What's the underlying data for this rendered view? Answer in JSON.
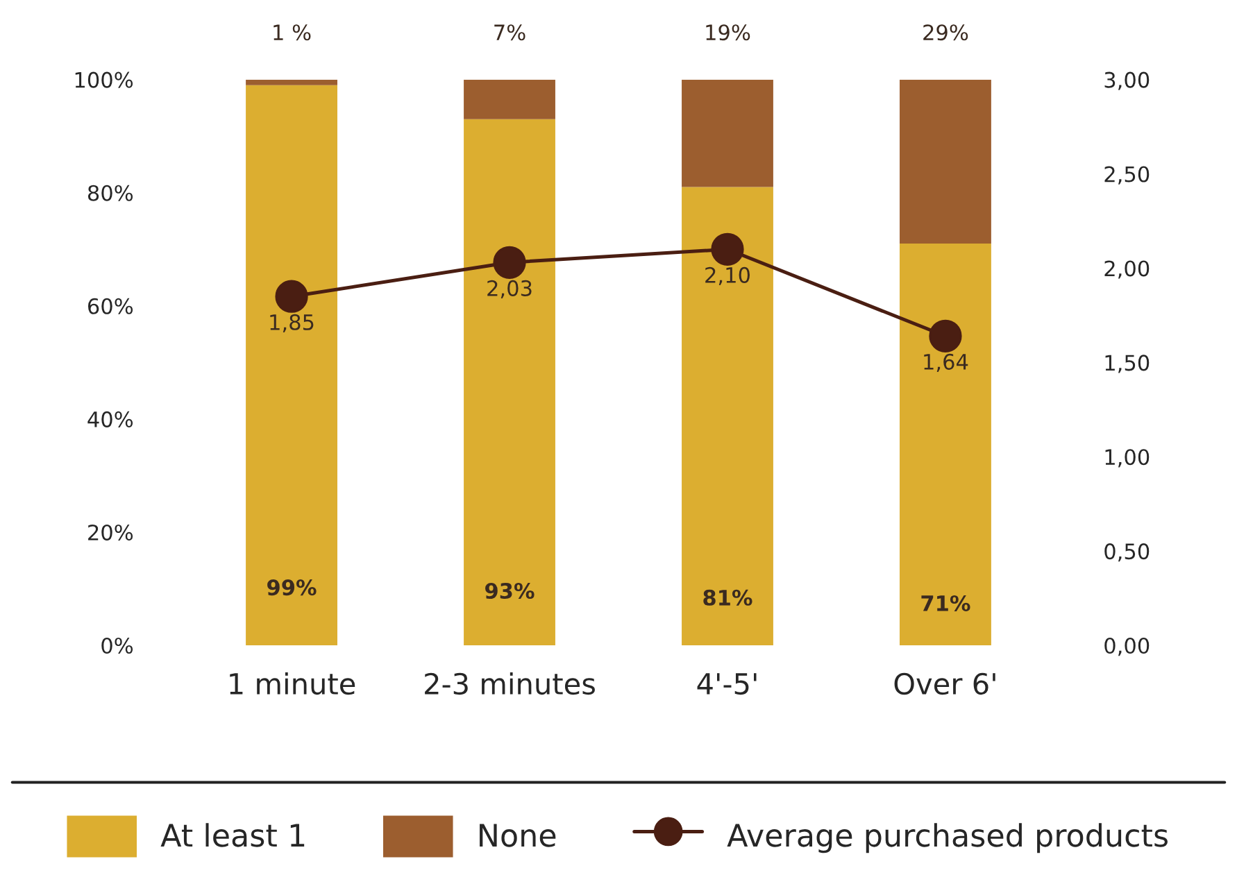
{
  "chart_data": {
    "type": "bar",
    "stacked": true,
    "categories": [
      "1 minute",
      "2-3 minutes",
      "4'-5'",
      "Over 6'"
    ],
    "series": [
      {
        "name": "At least 1",
        "color": "#dcae30",
        "values": [
          99,
          93,
          81,
          71
        ],
        "value_labels": [
          "99%",
          "93%",
          "81%",
          "71%"
        ]
      },
      {
        "name": "None",
        "color": "#9c5e2f",
        "values": [
          1,
          7,
          19,
          29
        ],
        "value_labels": [
          "1 %",
          "7%",
          "19%",
          "29%"
        ]
      },
      {
        "name": "Average purchased products",
        "type": "line",
        "axis": "y2",
        "color": "#4a1e12",
        "values": [
          1.85,
          2.03,
          2.1,
          1.64
        ],
        "value_labels": [
          "1,85",
          "2,03",
          "2,10",
          "1,64"
        ]
      }
    ],
    "ylim": [
      0,
      100
    ],
    "yticks": [
      {
        "value": 0,
        "label": "0%"
      },
      {
        "value": 20,
        "label": "20%"
      },
      {
        "value": 40,
        "label": "40%"
      },
      {
        "value": 60,
        "label": "60%"
      },
      {
        "value": 80,
        "label": "80%"
      },
      {
        "value": 100,
        "label": "100%"
      }
    ],
    "y2lim": [
      0,
      3
    ],
    "y2ticks": [
      {
        "value": 0,
        "label": "0,00"
      },
      {
        "value": 0.5,
        "label": "0,50"
      },
      {
        "value": 1,
        "label": "1,00"
      },
      {
        "value": 1.5,
        "label": "1,50"
      },
      {
        "value": 2,
        "label": "2,00"
      },
      {
        "value": 2.5,
        "label": "2,50"
      },
      {
        "value": 3,
        "label": "3,00"
      }
    ],
    "marker": "circle",
    "line_style": "solid",
    "grid": false,
    "legend": "bottom"
  }
}
